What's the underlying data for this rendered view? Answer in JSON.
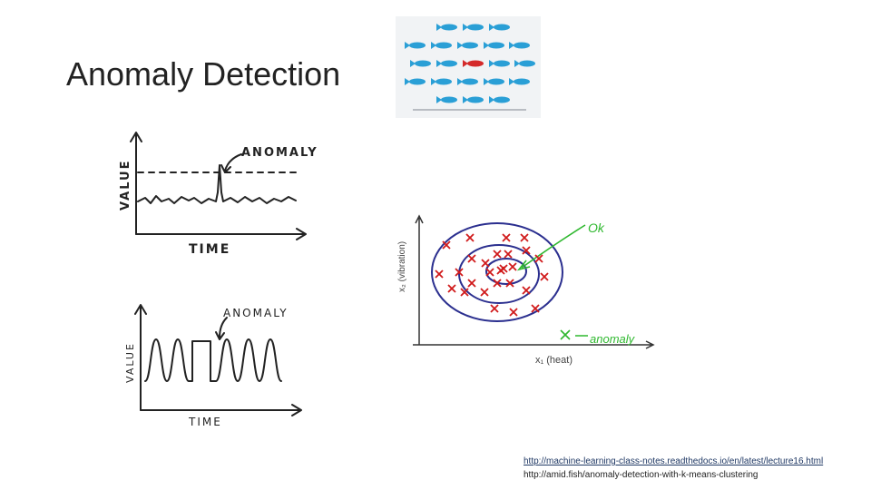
{
  "title": "Anomaly Detection",
  "sketch_top": {
    "label": "ANOMALY",
    "y_label": "VALUE",
    "x_label": "TIME"
  },
  "sketch_bottom": {
    "label": "ANOMALY",
    "y_label": "VALUE",
    "x_label": "TIME"
  },
  "cluster_plot": {
    "y_label": "x₂ (vibration)",
    "x_label": "x₁ (heat)",
    "ok_label": "Ok",
    "anomaly_label": "anomaly"
  },
  "links": [
    "http://machine-learning-class-notes.readthedocs.io/en/latest/lecture16.html",
    "http://amid.fish/anomaly-detection-with-k-means-clustering"
  ]
}
